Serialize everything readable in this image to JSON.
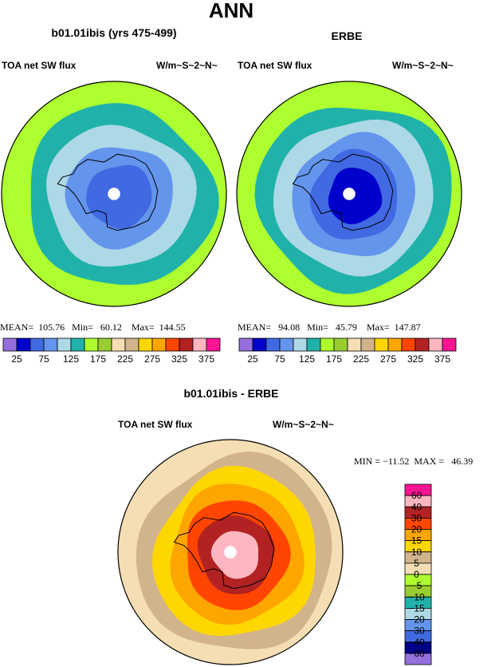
{
  "page": {
    "title": "ANN"
  },
  "colors": {
    "abs_palette": [
      "#9370db",
      "#0000cd",
      "#4169e1",
      "#6495ed",
      "#add8e6",
      "#20b2aa",
      "#adff2f",
      "#9acd32",
      "#f5deb3",
      "#d2b48c",
      "#ffd700",
      "#ffa500",
      "#ff4500",
      "#b22222",
      "#ffb6c1",
      "#ff1493"
    ],
    "diff_palette": [
      "#9370db",
      "#00008b",
      "#4169e1",
      "#6495ed",
      "#add8e6",
      "#20b2aa",
      "#9acd32",
      "#adff2f",
      "#f5deb3",
      "#d2b48c",
      "#ffd700",
      "#ffa500",
      "#ff4500",
      "#b22222",
      "#ffb6c1",
      "#ff1493"
    ],
    "land_outline": "#000000"
  },
  "panels": {
    "left": {
      "title": "b01.01ibis (yrs 475-499)",
      "left_label": "TOA net SW flux",
      "right_label": "W/m~S~2~N~",
      "stats": "MEAN=  105.76   Min=   60.12    Max=  144.55"
    },
    "right": {
      "title": "ERBE",
      "left_label": "TOA net SW flux",
      "right_label": "W/m~S~2~N~",
      "stats": "MEAN=   94.08   Min=   45.79    Max=  147.87"
    },
    "diff": {
      "title": "b01.01ibis - ERBE",
      "left_label": "TOA net SW flux",
      "right_label": "W/m~S~2~N~",
      "stats": "MIN = −11.52  MAX =   46.39"
    }
  },
  "chart_data": [
    {
      "type": "heatmap",
      "projection": "south-polar-stereographic",
      "title": "b01.01ibis (yrs 475-499)",
      "variable": "TOA net SW flux",
      "units": "W/m~S~2~N~",
      "mean": 105.76,
      "min": 60.12,
      "max": 144.55,
      "contour_levels": [
        25,
        50,
        75,
        100,
        125,
        150,
        175,
        200,
        225,
        250,
        275,
        300,
        325,
        350,
        375
      ],
      "colorbar_tick_labels": [
        "25",
        "75",
        "125",
        "175",
        "225",
        "275",
        "325",
        "375"
      ],
      "field_rings": [
        {
          "value": 145,
          "band": 6
        },
        {
          "value": 135,
          "band": 5
        },
        {
          "value": 110,
          "band": 4
        },
        {
          "value": 90,
          "band": 3
        },
        {
          "value": 70,
          "band": 2
        }
      ]
    },
    {
      "type": "heatmap",
      "projection": "south-polar-stereographic",
      "title": "ERBE",
      "variable": "TOA net SW flux",
      "units": "W/m~S~2~N~",
      "mean": 94.08,
      "min": 45.79,
      "max": 147.87,
      "contour_levels": [
        25,
        50,
        75,
        100,
        125,
        150,
        175,
        200,
        225,
        250,
        275,
        300,
        325,
        350,
        375
      ],
      "colorbar_tick_labels": [
        "25",
        "75",
        "125",
        "175",
        "225",
        "275",
        "325",
        "375"
      ],
      "field_rings": [
        {
          "value": 145,
          "band": 6
        },
        {
          "value": 135,
          "band": 5
        },
        {
          "value": 110,
          "band": 4
        },
        {
          "value": 90,
          "band": 3
        },
        {
          "value": 65,
          "band": 2
        },
        {
          "value": 48,
          "band": 1
        }
      ]
    },
    {
      "type": "heatmap",
      "projection": "south-polar-stereographic",
      "title": "b01.01ibis - ERBE",
      "variable": "TOA net SW flux",
      "units": "W/m~S~2~N~",
      "min": -11.52,
      "max": 46.39,
      "contour_levels": [
        -60,
        -40,
        -30,
        -20,
        -15,
        -10,
        -5,
        0,
        5,
        10,
        15,
        20,
        30,
        40,
        60
      ],
      "colorbar_tick_labels": [
        "60",
        "40",
        "30",
        "20",
        "15",
        "10",
        "5",
        "0",
        "−5",
        "−10",
        "−15",
        "−20",
        "−30",
        "−40",
        "−60"
      ],
      "field_rings": [
        {
          "value": 2,
          "band": 8
        },
        {
          "value": 7,
          "band": 9
        },
        {
          "value": 12,
          "band": 10
        },
        {
          "value": 18,
          "band": 11
        },
        {
          "value": 25,
          "band": 12
        },
        {
          "value": 35,
          "band": 13
        },
        {
          "value": 45,
          "band": 14
        }
      ]
    }
  ]
}
